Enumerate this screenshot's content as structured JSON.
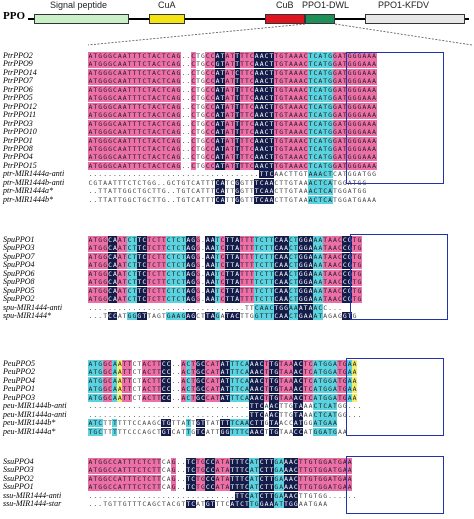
{
  "header": {
    "protein_label": "PPO",
    "domains": [
      {
        "label": "Signal peptide",
        "color": "#c9f0c6"
      },
      {
        "label": "CuA",
        "color": "#f3e312"
      },
      {
        "label": "CuB",
        "color": "#e0141e"
      },
      {
        "label": "PPO1-DWL",
        "color": "#1f8f5a"
      },
      {
        "label": "PPO1-KFDV",
        "color": "#e7e7e7"
      }
    ]
  },
  "groups": [
    {
      "id": "ptr",
      "names": [
        "PtrPPO2",
        "PtrPPO9",
        "PtrPPO14",
        "PtrPPO7",
        "PtrPPO6",
        "PtrPPO5",
        "PtrPPO12",
        "PtrPPO11",
        "PtrPPO3",
        "PtrPPO10",
        "PtrPPO1",
        "PtrPPO8",
        "PtrPPO4",
        "PtrPPO15",
        "ptr-MIR1444a-anti",
        "ptr-MIR1444b-anti",
        "ptr-MIR1444a*",
        "ptr-MIR1444b*"
      ],
      "pattern": "ppppppppppppppppppppppwwppkkppkpppkkkkpppppppcccccpp",
      "rows": [
        "ATGGGCAATTTCTACTCAG..CTGCCATATTTTCAACTTGTAAACTCATGGATGGGAAA",
        "ATGGGCAATTTCTACTCAG..CTGCCGTATTTTCAACTTGTAAACTCATGGATGGGAAA",
        "ATGGGCAATTTCTACTCAG..CTGCCATATCTTCAACTTGTAAACTCATGGATGGGAAA",
        "ATGGGCAATTTCTACTCAG..CTGCCATATTTTCAACTTGTAAACTCATGGATGGGAAA",
        "ATGGGCAATTTCTACTCAG..CTGCCATATTTTCAACTTGTAAACTCATGGATGGGAAA",
        "ATGGGCAATTTCTACTCAG..CTGCCATATTTTCAACTTGTAAACTCATGGATGGGAAA",
        "ATGGGCAATTTCTACTCAG..CTGCCATATTTTCAACTTGTAAACTCATGGATGGGAAA",
        "ATGGGCAATTTCTACTCAG..CTGCCATATTTTCAACTTGTAAACTCATGGATGGGAAA",
        "ATGGGCAATTTCTACTCAG..CTGCCATATTTTCAACTTGTAAACTCATGGATGGGAAA",
        "ATGGGCAATTTCTACTCAG..CTGCCATATTTTCAACTTGTAAACTCATGGATGGGAAA",
        "ATGGGCAATTTCTACTCAG..CTGCCATATTTTCAACTTGTAAACTCATGGATGGGAAA",
        "ATGGGCAATTTCTACTCAG..CTGCCATATTTTCAACTTGTAAACTCATGGATGGGAAA",
        "ATGGGCAATTTCTACTCAG..CTGCCATATTTTCAACTTGTAAACTCATGGATGGGAAA",
        "ATGGGCAATTTCTACTCAG..CTGCCATATTTTCAACTTGTAAACTCATGGATGGGAAA",
        "...................................TTCAACTTGTAAACTCATGGATGG",
        "CGTAATTTCTCTGG..GCTGTCATTTCATCGGTTTCAACTTGTAAACTCATGGATGG",
        "..TTATTGGCTGCTTG..TGTCATTTCATTGGTTTCAACTTGTAAACTCATGGATGG",
        "..TTATTGGCTGCTTG..TGTCATTTCATTGGTTTCAACTTGTAAACTCATGGATGAAA"
      ]
    },
    {
      "id": "spu",
      "names": [
        "SpuPPO1",
        "SpuPPO3",
        "SpuPPO7",
        "SpuPPO4",
        "SpuPPO6",
        "SpuPPO8",
        "SpuPPO5",
        "SpuPPO2",
        "spu-MIR1444-anti",
        "spu-MIR1444*"
      ],
      "pattern": "ppppkkppcckkppppcccckkppkkcpkkkpppcccckkkcckkkcc",
      "rows": [
        "ATGGCAATCTTCTCTTCTCTAGG.AATCTTATTTTCTTCAACTGGAAATAACCGTG",
        "ATGGCAATCTTCTCTTCTCTAGG.AATCTTATTTTCTTCAACTGGAAATAACCGTG",
        "ATGGCAATCTTCTCTTCTCTAGG.AATCTTATTTTCTTCAACTGGAAATAACCGTG",
        "ATGGCAATCTTCTCTTCTCTAGG.AATCTTATTTTCTTCAACTGGAAATAACCGTG",
        "ATGGCAATCTTCTCTTCTCTAGG.AATCTTATTTTCTTCAACTGGAAATAACCGTG",
        "ATGGCAATCTTCTCTTCTCTAGG.AATCTTATTTTCTTCAACTGGAAATAACCGTG",
        "ATGGCAATCTTCTCTTCTCTAGG.AATCTTATTTTCTTCAACTGGAAATAACCGTG",
        "ATGGCAATCTTCTCTTCTCTAGG.AATCTTATTTTCTTCAACTGGAAATAACCGTG",
        "................................TTCAACTGGAAATAACC...",
        "...TCCATGGGTTAGTGAAGAGCTTAGATACTTGGTTTCAACTGAAATAGAGGTG"
      ]
    },
    {
      "id": "peu",
      "names": [
        "PeuPPO5",
        "PeuPPO2",
        "PeuPPO4",
        "PeuPPO1",
        "PeuPPO3",
        "peu-MIR1444b-anti",
        "peu-MIR1444a-anti",
        "peu-MIR1444b*",
        "peu-MIR1444a*"
      ],
      "pattern": "cccppcyppwwppppkkpppcpkkpppkkcccckkkpkkpppkkppcc",
      "rows": [
        "ATGGCAATTCTACTTCC..ACTGCCATATTTCAAACTTGTAAACTCATGGATGAA",
        "ATGGCAATTCTACTTCC..ACTGCCATATTTCAAACTTGTAAACTCATGGATGAA",
        "ATGGCAATTCTACTTCC..ACTGCCATATTTCAAACTTGTAAACTCATGGATGAA",
        "ATGGCAATTCTACTTCC..ACTGCCATATTTCAAACTTGTAAACTCATGGATGAA",
        "ATGGCAATTCTACTTCC..ACTGCCATATTTCAAACTTGTAAACTCATGGATGAA",
        ".................................TTCAACTTGTAAACTCATGG...",
        ".................................TTCAACTTGTAAACTCATGG...",
        "ATCTTTTTTCCAAGCTGTTATTGTTATTTTCAACTTGTAACCATGGATGAA",
        "TGCTTTTTCCCAGCTGTCATTGTCATTGGTTTCAACTTGTAACCATGGATGAA"
      ]
    },
    {
      "id": "ssu",
      "names": [
        "SsuPPO4",
        "SsuPPO3",
        "SsuPPO2",
        "SsuPPO1",
        "ssu-MIR1444-anti",
        "ssu-MIR1444-star"
      ],
      "pattern": "pppppppppppppppwwpppkkppkkpppkkkkcckkkcckkkpppp",
      "rows": [
        "ATGGCCATTTCTCTTCAG..TCTGCCATATTTCATCTTGAAACTTGTGGATGAA",
        "ATGGCCATTTCTCTTCAG..TCTGCCATATTTCATCTTGAAACTTGTGGATGAA",
        "ATGGCCATTTCTCTTCAG..TCTGCCATATTTCATCTTGAAACTTGTGGATGAA",
        "ATGGCCATTTCTCTTCAG..TCTGCCATATTTCATCTTGAAACTTGTGGATGAA",
        "..............................TTCATCTTGAAACTTGTGG......",
        "...TGTTGTTTCAGCTACGTTCATGTTTCATCTTGGAAATTGGAATGAA"
      ]
    }
  ]
}
